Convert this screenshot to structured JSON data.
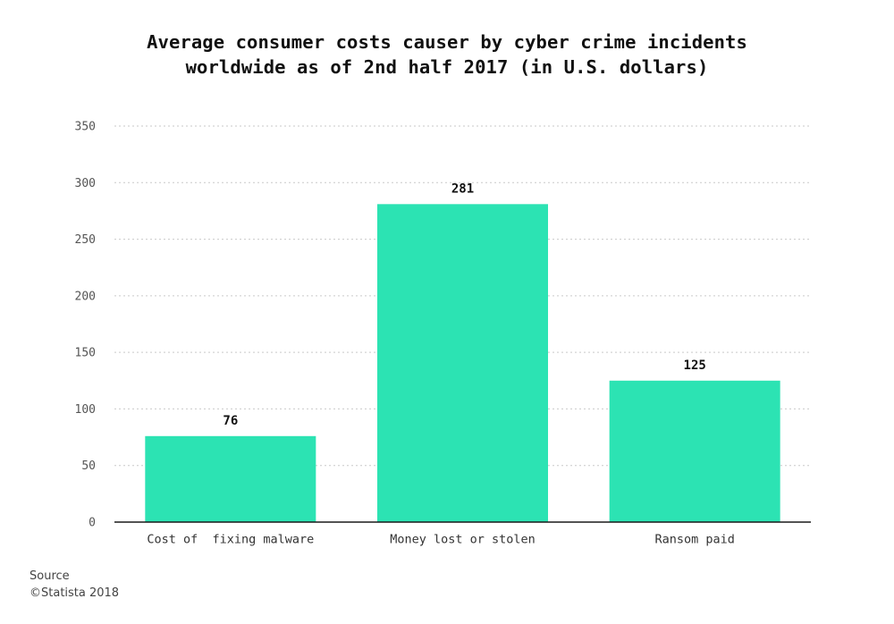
{
  "chart_data": {
    "type": "bar",
    "title_line1": "Average consumer costs causer by cyber crime incidents",
    "title_line2": "worldwide as of 2nd half 2017 (in U.S. dollars)",
    "categories": [
      "Cost of  fixing malware",
      "Money lost or stolen",
      "Ransom paid"
    ],
    "values": [
      76,
      281,
      125
    ],
    "value_labels": [
      "76",
      "281",
      "125"
    ],
    "xlabel": "",
    "ylabel": "",
    "ylim": [
      0,
      350
    ],
    "yticks": [
      0,
      50,
      100,
      150,
      200,
      250,
      300,
      350
    ],
    "grid": true,
    "legend": "none",
    "bar_color": "#2ce3b3"
  },
  "footer": {
    "source_label": "Source",
    "copyright": "©Statista 2018"
  }
}
